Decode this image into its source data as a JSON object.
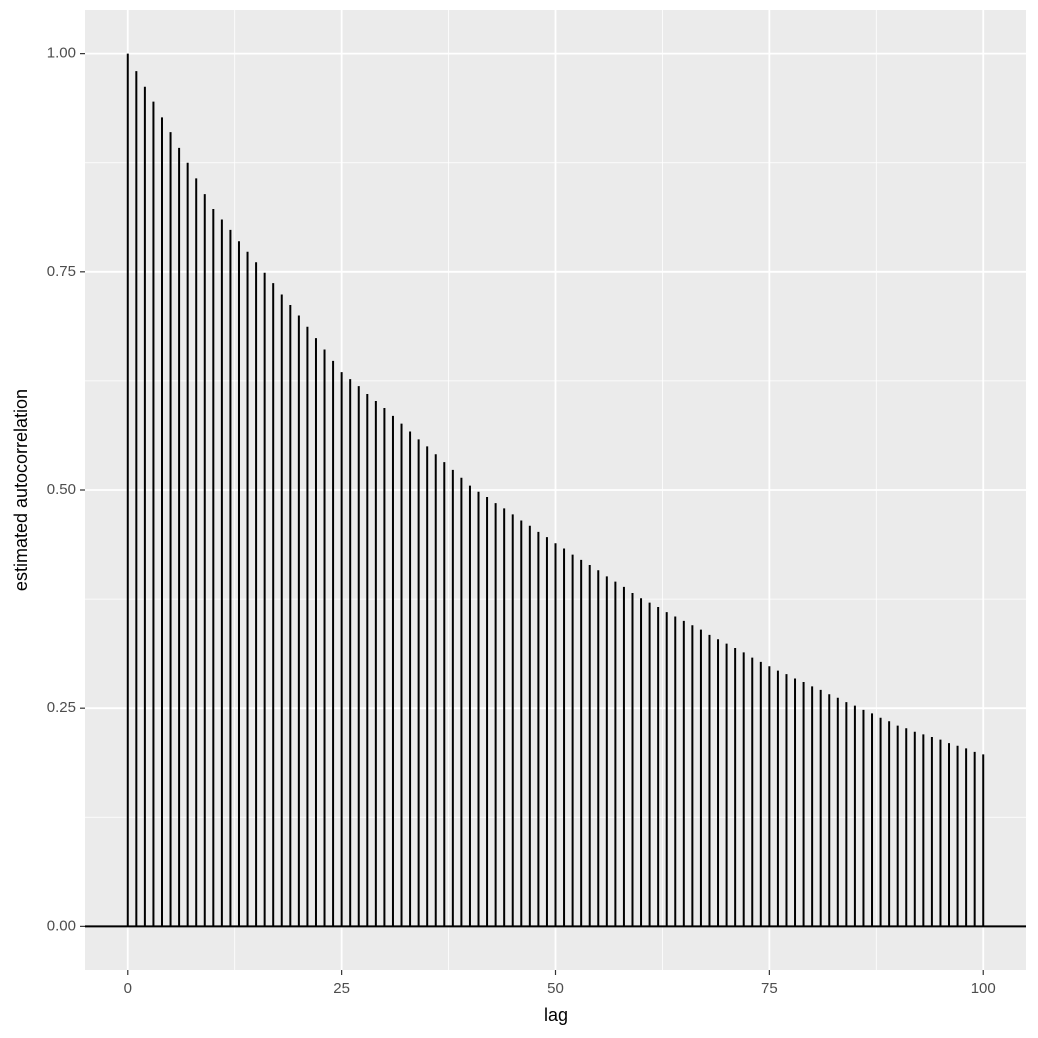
{
  "chart_data": {
    "type": "stem",
    "x_label": "lag",
    "y_label": "estimated autocorrelation",
    "x": [
      0,
      1,
      2,
      3,
      4,
      5,
      6,
      7,
      8,
      9,
      10,
      11,
      12,
      13,
      14,
      15,
      16,
      17,
      18,
      19,
      20,
      21,
      22,
      23,
      24,
      25,
      26,
      27,
      28,
      29,
      30,
      31,
      32,
      33,
      34,
      35,
      36,
      37,
      38,
      39,
      40,
      41,
      42,
      43,
      44,
      45,
      46,
      47,
      48,
      49,
      50,
      51,
      52,
      53,
      54,
      55,
      56,
      57,
      58,
      59,
      60,
      61,
      62,
      63,
      64,
      65,
      66,
      67,
      68,
      69,
      70,
      71,
      72,
      73,
      74,
      75,
      76,
      77,
      78,
      79,
      80,
      81,
      82,
      83,
      84,
      85,
      86,
      87,
      88,
      89,
      90,
      91,
      92,
      93,
      94,
      95,
      96,
      97,
      98,
      99,
      100
    ],
    "values": [
      1.0,
      0.98,
      0.962,
      0.945,
      0.927,
      0.91,
      0.892,
      0.875,
      0.857,
      0.839,
      0.822,
      0.81,
      0.798,
      0.785,
      0.773,
      0.761,
      0.749,
      0.737,
      0.724,
      0.712,
      0.7,
      0.687,
      0.674,
      0.661,
      0.648,
      0.635,
      0.627,
      0.619,
      0.61,
      0.602,
      0.594,
      0.585,
      0.576,
      0.567,
      0.558,
      0.55,
      0.541,
      0.532,
      0.523,
      0.514,
      0.505,
      0.498,
      0.492,
      0.485,
      0.479,
      0.472,
      0.465,
      0.459,
      0.452,
      0.446,
      0.439,
      0.433,
      0.426,
      0.42,
      0.414,
      0.408,
      0.401,
      0.395,
      0.389,
      0.382,
      0.376,
      0.371,
      0.366,
      0.36,
      0.355,
      0.35,
      0.345,
      0.34,
      0.334,
      0.329,
      0.324,
      0.319,
      0.314,
      0.308,
      0.303,
      0.298,
      0.293,
      0.289,
      0.284,
      0.28,
      0.275,
      0.271,
      0.266,
      0.262,
      0.257,
      0.253,
      0.248,
      0.244,
      0.239,
      0.235,
      0.23,
      0.227,
      0.223,
      0.22,
      0.217,
      0.214,
      0.21,
      0.207,
      0.204,
      0.2,
      0.197
    ],
    "color": "#000000",
    "xlim": [
      -5,
      105
    ],
    "ylim": [
      -0.05,
      1.05
    ],
    "xticks": [
      0,
      25,
      50,
      75,
      100
    ],
    "yticks": [
      {
        "value": 0,
        "label": "0.00"
      },
      {
        "value": 0.25,
        "label": "0.25"
      },
      {
        "value": 0.5,
        "label": "0.50"
      },
      {
        "value": 0.75,
        "label": "0.75"
      },
      {
        "value": 1,
        "label": "1.00"
      }
    ],
    "grid": true
  }
}
